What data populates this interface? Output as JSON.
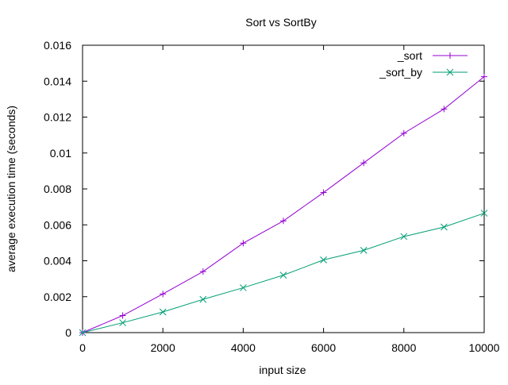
{
  "chart_data": {
    "type": "line",
    "title": "Sort vs SortBy",
    "xlabel": "input size",
    "ylabel": "average execution time (seconds)",
    "xlim": [
      0,
      10000
    ],
    "ylim": [
      0,
      0.016
    ],
    "x_ticks": [
      "0",
      "2000",
      "4000",
      "6000",
      "8000",
      "10000"
    ],
    "y_ticks": [
      "0",
      "0.002",
      "0.004",
      "0.006",
      "0.008",
      "0.01",
      "0.012",
      "0.014",
      "0.016"
    ],
    "grid": false,
    "legend_position": "top-right",
    "x": [
      0,
      1000,
      2000,
      3000,
      4000,
      5000,
      6000,
      7000,
      8000,
      9000,
      10000
    ],
    "series": [
      {
        "name": "_sort",
        "color": "#9400d3",
        "marker": "plus",
        "values": [
          0,
          0.00095,
          0.00215,
          0.0034,
          0.00498,
          0.00622,
          0.0078,
          0.00945,
          0.0111,
          0.01245,
          0.01425
        ]
      },
      {
        "name": "_sort_by",
        "color": "#009e73",
        "marker": "cross",
        "values": [
          0,
          0.00055,
          0.00115,
          0.00185,
          0.0025,
          0.0032,
          0.00405,
          0.00458,
          0.00535,
          0.00588,
          0.00665
        ]
      }
    ]
  }
}
